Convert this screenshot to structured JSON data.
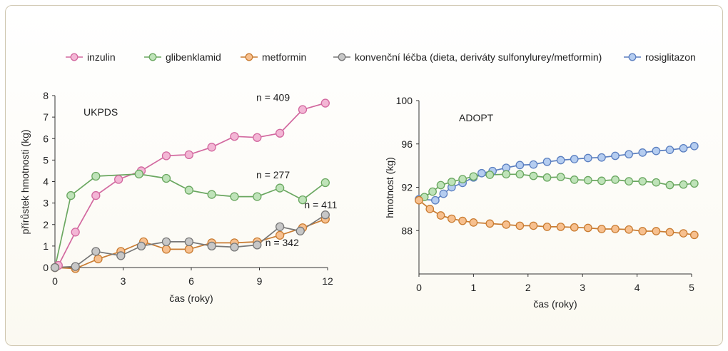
{
  "legend": [
    {
      "label": "inzulin",
      "color": "#f3b6d5",
      "stroke": "#d2689f"
    },
    {
      "label": "glibenklamid",
      "color": "#bfe3b9",
      "stroke": "#6aa760"
    },
    {
      "label": "metformin",
      "color": "#f7c08f",
      "stroke": "#c97c32"
    },
    {
      "label": "konvenční léčba (dieta, deriváty sulfonylurey/metformin)",
      "color": "#c7c7c7",
      "stroke": "#777777"
    },
    {
      "label": "rosiglitazon",
      "color": "#b5cdf0",
      "stroke": "#5b7fc0"
    }
  ],
  "chart_data": [
    {
      "type": "line",
      "title": "UKPDS",
      "xlabel": "čas (roky)",
      "ylabel": "přírůstek hmotnosti (kg)",
      "xlim": [
        0,
        12
      ],
      "ylim": [
        0,
        8
      ],
      "xticks": [
        "0",
        "3",
        "6",
        "9",
        "12"
      ],
      "yticks": [
        "0",
        "1",
        "2",
        "3",
        "4",
        "5",
        "6",
        "7",
        "8"
      ],
      "grid": false,
      "series": [
        {
          "name": "inzulin",
          "color": "#f3b6d5",
          "stroke": "#d2689f",
          "x": [
            0,
            0.15,
            0.9,
            1.8,
            2.8,
            3.8,
            4.9,
            5.9,
            6.9,
            7.9,
            8.9,
            9.9,
            10.9,
            11.9
          ],
          "y": [
            0,
            0.1,
            1.65,
            3.35,
            4.1,
            4.5,
            5.2,
            5.25,
            5.6,
            6.1,
            6.05,
            6.25,
            7.35,
            7.65
          ]
        },
        {
          "name": "glibenklamid",
          "color": "#bfe3b9",
          "stroke": "#6aa760",
          "x": [
            0,
            0.7,
            1.8,
            3.7,
            4.9,
            5.9,
            6.9,
            7.9,
            8.9,
            9.9,
            10.9,
            11.9
          ],
          "y": [
            0,
            3.35,
            4.25,
            4.35,
            4.15,
            3.6,
            3.4,
            3.3,
            3.3,
            3.7,
            3.15,
            3.95
          ]
        },
        {
          "name": "metformin",
          "color": "#f7c08f",
          "stroke": "#c97c32",
          "x": [
            0,
            0.9,
            1.9,
            2.9,
            3.9,
            4.9,
            5.9,
            6.9,
            7.9,
            8.9,
            9.9,
            10.9,
            11.9
          ],
          "y": [
            0,
            -0.05,
            0.4,
            0.75,
            1.2,
            0.85,
            0.85,
            1.15,
            1.15,
            1.2,
            1.5,
            1.85,
            2.25
          ]
        },
        {
          "name": "konvenční léčba",
          "color": "#c7c7c7",
          "stroke": "#777777",
          "x": [
            0,
            0.9,
            1.8,
            2.9,
            3.8,
            4.9,
            5.9,
            6.9,
            7.9,
            8.9,
            9.9,
            10.8,
            11.9
          ],
          "y": [
            0,
            0.05,
            0.75,
            0.55,
            1.0,
            1.2,
            1.2,
            1.0,
            0.95,
            1.05,
            1.9,
            1.7,
            2.45
          ]
        }
      ],
      "annotations": [
        {
          "text": "n = 409",
          "x": 9.6,
          "y": 7.75
        },
        {
          "text": "n = 277",
          "x": 9.6,
          "y": 4.15
        },
        {
          "text": "n = 411",
          "x": 11.7,
          "y": 2.75
        },
        {
          "text": "n = 342",
          "x": 10.0,
          "y": 1.0
        }
      ]
    },
    {
      "type": "line",
      "title": "ADOPT",
      "xlabel": "čas (roky)",
      "ylabel": "hmotnost (kg)",
      "xlim": [
        0,
        5
      ],
      "ylim": [
        84,
        100
      ],
      "xticks": [
        "0",
        "1",
        "2",
        "3",
        "4",
        "5"
      ],
      "yticks": [
        "88",
        "92",
        "96",
        "100"
      ],
      "grid": false,
      "series": [
        {
          "name": "rosiglitazon",
          "color": "#b5cdf0",
          "stroke": "#5b7fc0",
          "x": [
            0,
            0.3,
            0.45,
            0.6,
            0.8,
            1.0,
            1.15,
            1.35,
            1.6,
            1.85,
            2.1,
            2.35,
            2.6,
            2.85,
            3.1,
            3.35,
            3.6,
            3.85,
            4.1,
            4.35,
            4.6,
            4.85,
            5.05
          ],
          "y": [
            90.9,
            90.8,
            91.4,
            92.0,
            92.4,
            92.9,
            93.3,
            93.5,
            93.8,
            94.05,
            94.1,
            94.35,
            94.5,
            94.6,
            94.7,
            94.75,
            94.9,
            95.05,
            95.2,
            95.35,
            95.45,
            95.6,
            95.8
          ]
        },
        {
          "name": "glibenklamid",
          "color": "#bfe3b9",
          "stroke": "#6aa760",
          "x": [
            0.1,
            0.25,
            0.4,
            0.6,
            0.8,
            1.0,
            1.3,
            1.6,
            1.85,
            2.1,
            2.35,
            2.6,
            2.85,
            3.1,
            3.35,
            3.6,
            3.85,
            4.1,
            4.35,
            4.6,
            4.85,
            5.05
          ],
          "y": [
            91.1,
            91.6,
            92.2,
            92.5,
            92.75,
            93.0,
            93.15,
            93.2,
            93.2,
            93.05,
            92.9,
            92.95,
            92.7,
            92.65,
            92.6,
            92.7,
            92.55,
            92.55,
            92.45,
            92.2,
            92.25,
            92.35
          ]
        },
        {
          "name": "metformin",
          "color": "#f7c08f",
          "stroke": "#c97c32",
          "x": [
            0,
            0.2,
            0.4,
            0.6,
            0.8,
            1.0,
            1.3,
            1.6,
            1.85,
            2.1,
            2.35,
            2.6,
            2.85,
            3.1,
            3.35,
            3.6,
            3.85,
            4.1,
            4.35,
            4.6,
            4.85,
            5.05
          ],
          "y": [
            90.8,
            90.0,
            89.4,
            89.1,
            88.9,
            88.75,
            88.65,
            88.55,
            88.45,
            88.45,
            88.35,
            88.35,
            88.3,
            88.25,
            88.15,
            88.15,
            88.1,
            87.95,
            87.95,
            87.85,
            87.75,
            87.6
          ]
        }
      ]
    }
  ]
}
